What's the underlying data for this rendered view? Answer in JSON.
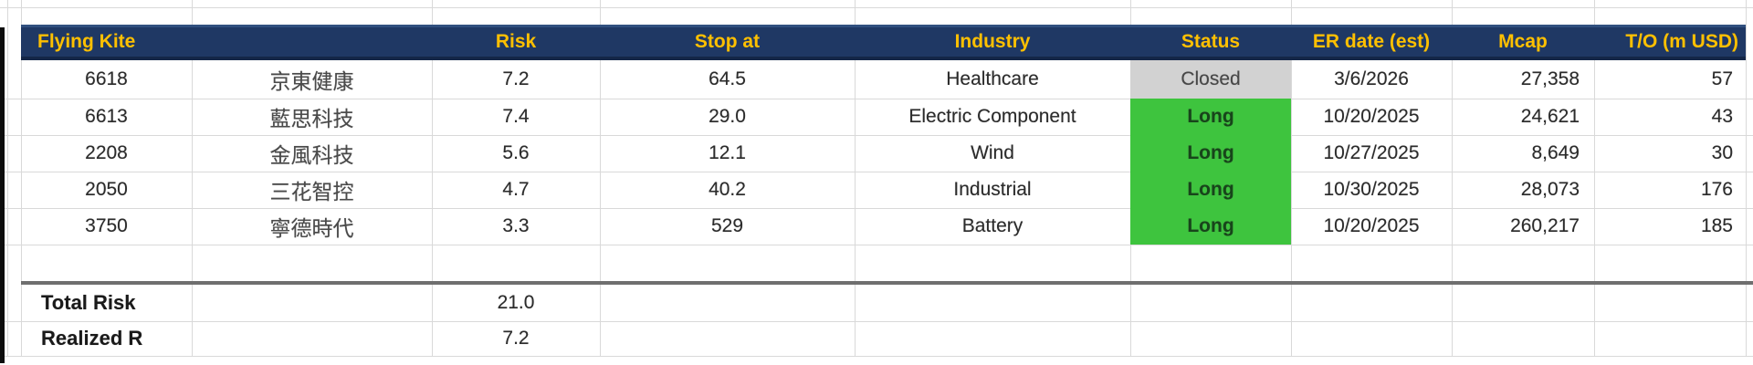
{
  "table": {
    "columns": [
      {
        "key": "code",
        "label": "Flying Kite"
      },
      {
        "key": "name",
        "label": ""
      },
      {
        "key": "risk",
        "label": "Risk"
      },
      {
        "key": "stop",
        "label": "Stop at"
      },
      {
        "key": "industry",
        "label": "Industry"
      },
      {
        "key": "status",
        "label": "Status"
      },
      {
        "key": "er_date",
        "label": "ER date (est)"
      },
      {
        "key": "mcap",
        "label": "Mcap"
      },
      {
        "key": "turnover",
        "label": "T/O (m USD)"
      }
    ],
    "rows": [
      {
        "code": "6618",
        "name": "京東健康",
        "risk": "7.2",
        "stop": "64.5",
        "industry": "Healthcare",
        "status": "Closed",
        "er_date": "3/6/2026",
        "mcap": "27,358",
        "turnover": "57"
      },
      {
        "code": "6613",
        "name": "藍思科技",
        "risk": "7.4",
        "stop": "29.0",
        "industry": "Electric Component",
        "status": "Long",
        "er_date": "10/20/2025",
        "mcap": "24,621",
        "turnover": "43"
      },
      {
        "code": "2208",
        "name": "金風科技",
        "risk": "5.6",
        "stop": "12.1",
        "industry": "Wind",
        "status": "Long",
        "er_date": "10/27/2025",
        "mcap": "8,649",
        "turnover": "30"
      },
      {
        "code": "2050",
        "name": "三花智控",
        "risk": "4.7",
        "stop": "40.2",
        "industry": "Industrial",
        "status": "Long",
        "er_date": "10/30/2025",
        "mcap": "28,073",
        "turnover": "176"
      },
      {
        "code": "3750",
        "name": "寧德時代",
        "risk": "3.3",
        "stop": "529",
        "industry": "Battery",
        "status": "Long",
        "er_date": "10/20/2025",
        "mcap": "260,217",
        "turnover": "185"
      }
    ],
    "summary": [
      {
        "label": "Total Risk",
        "value": "21.0"
      },
      {
        "label": "Realized R",
        "value": "7.2"
      }
    ],
    "colors": {
      "header_bg": "#1f3864",
      "header_text": "#ffc000",
      "status_long_bg": "#3ec43e",
      "status_long_text": "#17451a",
      "status_closed_bg": "#d2d2d2",
      "status_closed_text": "#474747",
      "gridline": "#d9d9d9",
      "summary_divider": "#6f6f6f"
    }
  }
}
